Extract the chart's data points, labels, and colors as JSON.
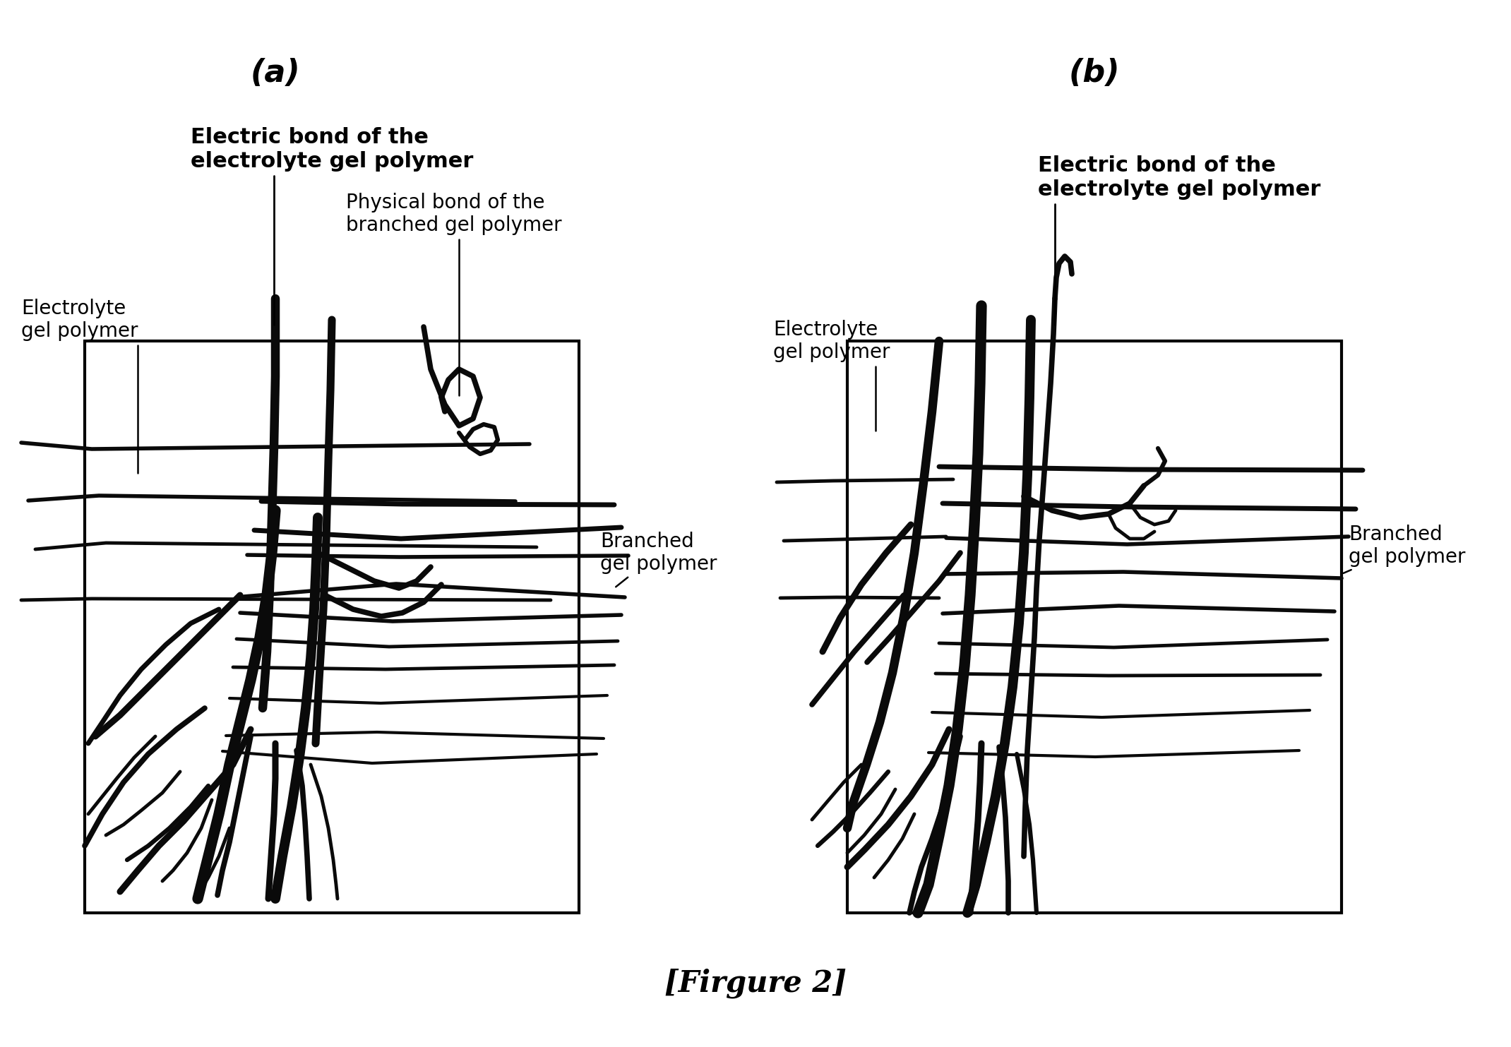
{
  "title": "[Firgure 2]",
  "panel_a_label": "(a)",
  "panel_b_label": "(b)",
  "bg_color": "#ffffff",
  "box_color": "#000000",
  "lw_thick": 8.0,
  "lw_med": 5.5,
  "lw_thin": 3.5,
  "lw_horiz": 4.0,
  "polymer_dark": "#0a0a0a",
  "label_a": {
    "electrolyte_gel_polymer": "Electrolyte\ngel polymer",
    "electric_bond": "Electric bond of the\nelectrolyte gel polymer",
    "physical_bond": "Physical bond of the\nbranched gel polymer",
    "branched_gel_polymer": "Branched\ngel polymer"
  },
  "label_b": {
    "electrolyte_gel_polymer": "Electrolyte\ngel polymer",
    "electric_bond": "Electric bond of the\nelectrolyte gel polymer",
    "branched_gel_polymer": "Branched\ngel polymer"
  }
}
